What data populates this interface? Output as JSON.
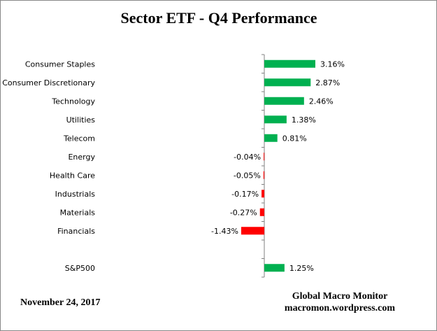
{
  "chart_data": {
    "type": "bar",
    "orientation": "horizontal",
    "title": "Sector ETF - Q4 Performance",
    "categories": [
      "Consumer Staples",
      "Consumer Discretionary",
      "Technology",
      "Utilities",
      "Telecom",
      "Energy",
      "Health Care",
      "Industrials",
      "Materials",
      "Financials",
      "",
      "S&P500"
    ],
    "values": [
      3.16,
      2.87,
      2.46,
      1.38,
      0.81,
      -0.04,
      -0.05,
      -0.17,
      -0.27,
      -1.43,
      null,
      1.25
    ],
    "data_labels": [
      "3.16%",
      "2.87%",
      "2.46%",
      "1.38%",
      "0.81%",
      "-0.04%",
      "-0.05%",
      "-0.17%",
      "-0.27%",
      "-1.43%",
      "",
      "1.25%"
    ],
    "unit": "%",
    "grid": false,
    "legend": "none",
    "colors": {
      "positive": "#00b050",
      "negative": "#ff0000",
      "axis": "#808080"
    }
  },
  "footer": {
    "date": "November 24,  2017",
    "source_name": "Global Macro Monitor",
    "source_url": "macromon.wordpress.com"
  }
}
